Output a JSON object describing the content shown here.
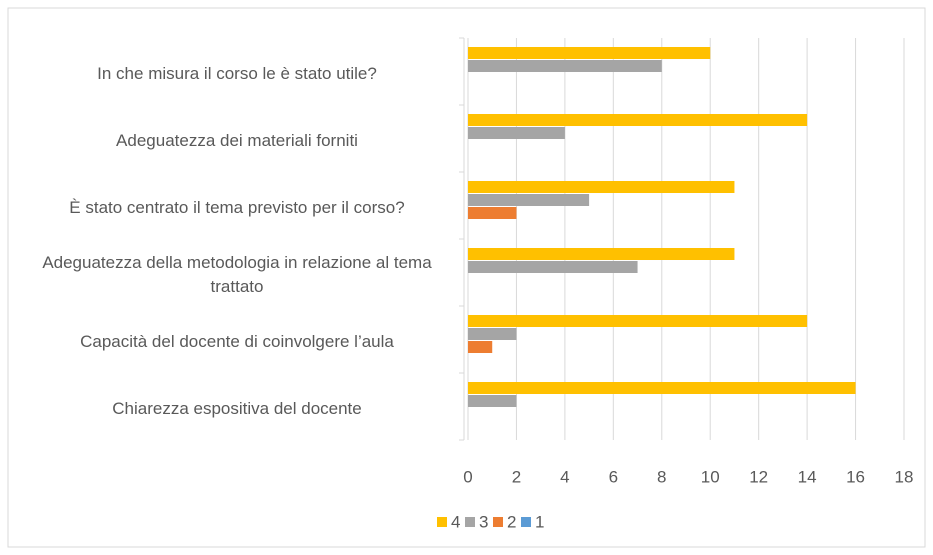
{
  "chart_data": {
    "type": "bar",
    "orientation": "horizontal",
    "categories": [
      "In che misura il corso le è stato utile?",
      "Adeguatezza dei materiali forniti",
      "È stato centrato il tema previsto per il corso?",
      "Adeguatezza della metodologia in relazione al tema trattato",
      "Capacità del docente di coinvolgere l’aula",
      "Chiarezza espositiva del docente"
    ],
    "series": [
      {
        "name": "4",
        "color": "#ffc000",
        "values": [
          10,
          14,
          11,
          11,
          14,
          16
        ]
      },
      {
        "name": "3",
        "color": "#a5a5a5",
        "values": [
          8,
          4,
          5,
          7,
          2,
          2
        ]
      },
      {
        "name": "2",
        "color": "#ed7d31",
        "values": [
          0,
          0,
          2,
          0,
          1,
          0
        ]
      },
      {
        "name": "1",
        "color": "#5b9bd5",
        "values": [
          0,
          0,
          0,
          0,
          0,
          0
        ]
      }
    ],
    "xlim": [
      0,
      18
    ],
    "xticks": [
      0,
      2,
      4,
      6,
      8,
      10,
      12,
      14,
      16,
      18
    ],
    "grid": true,
    "legend": "bottom"
  }
}
